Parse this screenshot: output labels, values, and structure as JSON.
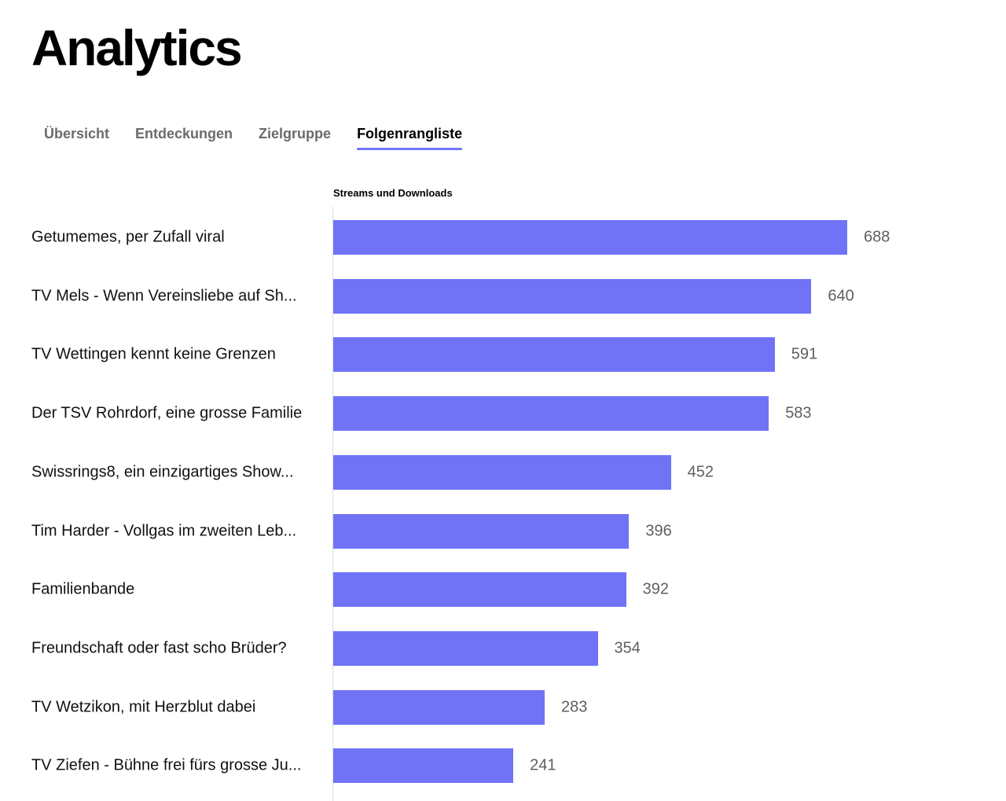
{
  "header": {
    "title": "Analytics"
  },
  "tabs": [
    {
      "label": "Übersicht",
      "active": false
    },
    {
      "label": "Entdeckungen",
      "active": false
    },
    {
      "label": "Zielgruppe",
      "active": false
    },
    {
      "label": "Folgenrangliste",
      "active": true
    }
  ],
  "colors": {
    "accent": "#7073f6",
    "bar": "#7073f6"
  },
  "chart_data": {
    "type": "bar",
    "orientation": "horizontal",
    "title": "Streams und Downloads",
    "categories": [
      "Getumemes, per Zufall viral",
      "TV Mels - Wenn Vereinsliebe auf Sh...",
      "TV Wettingen kennt keine Grenzen",
      "Der TSV Rohrdorf, eine grosse Familie",
      "Swissrings8, ein einzigartiges Show...",
      "Tim Harder - Vollgas im zweiten Leb...",
      "Familienbande",
      "Freundschaft oder fast scho Brüder?",
      "TV Wetzikon, mit Herzblut dabei",
      "TV Ziefen - Bühne frei fürs grosse Ju..."
    ],
    "values": [
      688,
      640,
      591,
      583,
      452,
      396,
      392,
      354,
      283,
      241
    ],
    "data_labels": [
      "688",
      "640",
      "591",
      "583",
      "452",
      "396",
      "392",
      "354",
      "283",
      "241"
    ],
    "xlim": [
      0,
      688
    ],
    "grid": false,
    "legend": "none"
  }
}
